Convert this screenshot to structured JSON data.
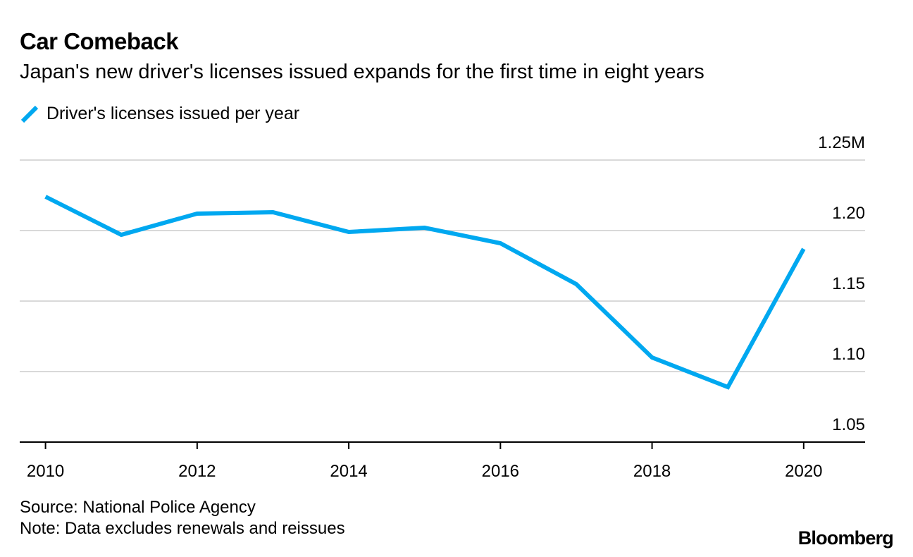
{
  "colors": {
    "line": "#00A8F0",
    "grid": "#d9d9d9",
    "axis": "#000000"
  },
  "chart_data": {
    "type": "line",
    "title": "Car Comeback",
    "subtitle": "Japan's new driver's licenses issued expands for the first time in eight years",
    "legend": "Driver's licenses issued per year",
    "x": [
      2010,
      2011,
      2012,
      2013,
      2014,
      2015,
      2016,
      2017,
      2018,
      2019,
      2020
    ],
    "series": [
      {
        "name": "Driver's licenses issued per year",
        "values": [
          1.224,
          1.197,
          1.212,
          1.213,
          1.199,
          1.202,
          1.191,
          1.162,
          1.11,
          1.089,
          1.187
        ]
      }
    ],
    "xticks": [
      2010,
      2012,
      2014,
      2016,
      2018,
      2020
    ],
    "xtick_labels": [
      "2010",
      "2012",
      "2014",
      "2016",
      "2018",
      "2020"
    ],
    "yticks": [
      1.05,
      1.1,
      1.15,
      1.2,
      1.25
    ],
    "ytick_labels": [
      "1.05",
      "1.10",
      "1.15",
      "1.20",
      "1.25M"
    ],
    "ylim": [
      1.05,
      1.25
    ],
    "xlim": [
      2009.66,
      2020.81
    ],
    "legend_position": "top-left"
  },
  "footer": {
    "source": "Source: National Police Agency",
    "note": "Note: Data excludes renewals and reissues",
    "logo": "Bloomberg"
  }
}
